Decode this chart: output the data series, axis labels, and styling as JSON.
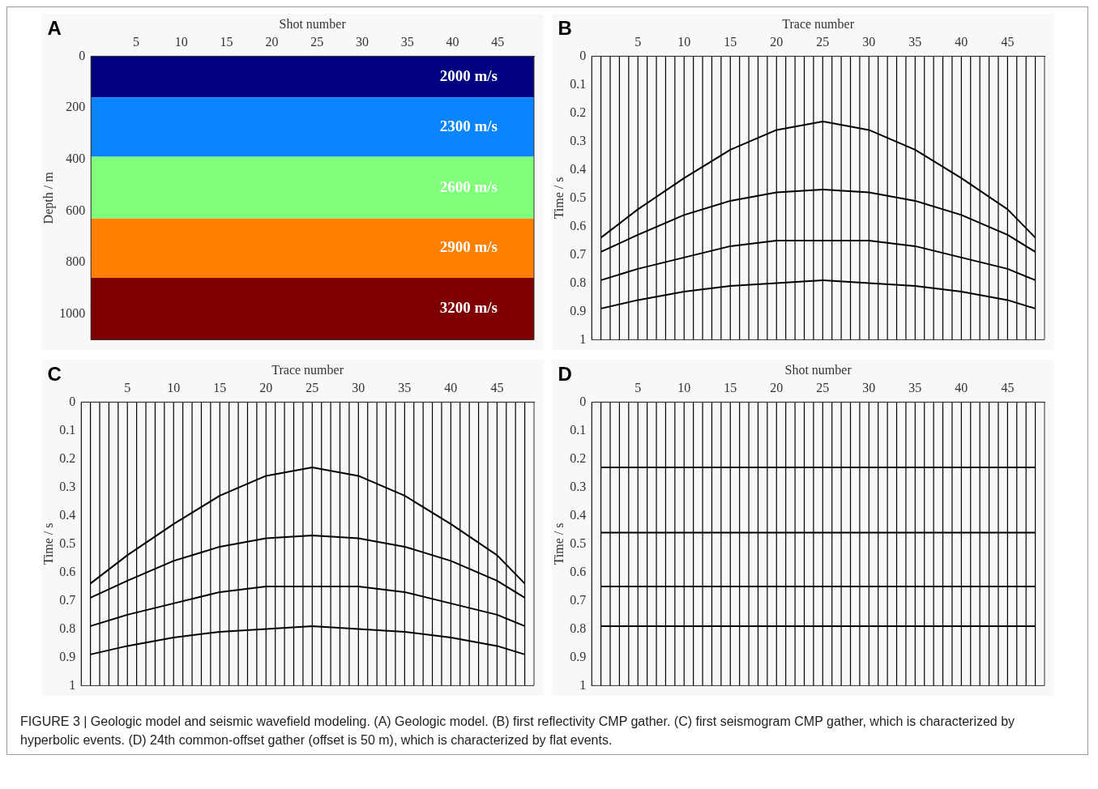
{
  "chart_data": [
    {
      "type": "line",
      "xlabel": "Shot number",
      "ylabel": "Depth / m",
      "xlim": [
        0,
        49
      ],
      "xticks": [
        5,
        10,
        15,
        20,
        25,
        30,
        35,
        40,
        45
      ],
      "ylim": [
        1100,
        0
      ],
      "yticks": [
        0,
        200,
        400,
        600,
        800,
        1000
      ],
      "annotations": [
        "A"
      ],
      "bands": [
        {
          "axis": "y",
          "from": 0,
          "to": 160,
          "label": "2000 m/s",
          "color": "#000080"
        },
        {
          "axis": "y",
          "from": 160,
          "to": 390,
          "label": "2300 m/s",
          "color": "#0a84ff"
        },
        {
          "axis": "y",
          "from": 390,
          "to": 630,
          "label": "2600 m/s",
          "color": "#80ff7a"
        },
        {
          "axis": "y",
          "from": 630,
          "to": 860,
          "label": "2900 m/s",
          "color": "#ff7f00"
        },
        {
          "axis": "y",
          "from": 860,
          "to": 1100,
          "label": "3200 m/s",
          "color": "#7f0000"
        }
      ]
    },
    {
      "type": "line",
      "xlabel": "Trace number",
      "ylabel": "Time / s",
      "xlim": [
        0,
        49
      ],
      "xticks": [
        5,
        10,
        15,
        20,
        25,
        30,
        35,
        40,
        45
      ],
      "ylim": [
        1,
        0
      ],
      "yticks": [
        0,
        0.1,
        0.2,
        0.3,
        0.4,
        0.5,
        0.6,
        0.7,
        0.8,
        0.9,
        1
      ],
      "annotations": [
        "B"
      ],
      "x": [
        1,
        5,
        10,
        15,
        20,
        25,
        30,
        35,
        40,
        45,
        48
      ],
      "series": [
        {
          "color": "#000000",
          "values": [
            0.64,
            0.54,
            0.43,
            0.33,
            0.26,
            0.23,
            0.26,
            0.33,
            0.43,
            0.54,
            0.64
          ]
        },
        {
          "color": "#000000",
          "values": [
            0.69,
            0.63,
            0.56,
            0.51,
            0.48,
            0.47,
            0.48,
            0.51,
            0.56,
            0.63,
            0.69
          ]
        },
        {
          "color": "#000000",
          "values": [
            0.79,
            0.75,
            0.71,
            0.67,
            0.65,
            0.65,
            0.65,
            0.67,
            0.71,
            0.75,
            0.79
          ]
        },
        {
          "color": "#000000",
          "values": [
            0.89,
            0.86,
            0.83,
            0.81,
            0.8,
            0.79,
            0.8,
            0.81,
            0.83,
            0.86,
            0.89
          ]
        }
      ],
      "ref_lines": [
        {
          "axis": "x",
          "value": 1
        },
        {
          "axis": "x",
          "value": 2
        },
        {
          "axis": "x",
          "value": 3
        },
        {
          "axis": "x",
          "value": 4
        },
        {
          "axis": "x",
          "value": 5
        },
        {
          "axis": "x",
          "value": 6
        },
        {
          "axis": "x",
          "value": 7
        },
        {
          "axis": "x",
          "value": 8
        },
        {
          "axis": "x",
          "value": 9
        },
        {
          "axis": "x",
          "value": 10
        },
        {
          "axis": "x",
          "value": 11
        },
        {
          "axis": "x",
          "value": 12
        },
        {
          "axis": "x",
          "value": 13
        },
        {
          "axis": "x",
          "value": 14
        },
        {
          "axis": "x",
          "value": 15
        },
        {
          "axis": "x",
          "value": 16
        },
        {
          "axis": "x",
          "value": 17
        },
        {
          "axis": "x",
          "value": 18
        },
        {
          "axis": "x",
          "value": 19
        },
        {
          "axis": "x",
          "value": 20
        },
        {
          "axis": "x",
          "value": 21
        },
        {
          "axis": "x",
          "value": 22
        },
        {
          "axis": "x",
          "value": 23
        },
        {
          "axis": "x",
          "value": 24
        },
        {
          "axis": "x",
          "value": 25
        },
        {
          "axis": "x",
          "value": 26
        },
        {
          "axis": "x",
          "value": 27
        },
        {
          "axis": "x",
          "value": 28
        },
        {
          "axis": "x",
          "value": 29
        },
        {
          "axis": "x",
          "value": 30
        },
        {
          "axis": "x",
          "value": 31
        },
        {
          "axis": "x",
          "value": 32
        },
        {
          "axis": "x",
          "value": 33
        },
        {
          "axis": "x",
          "value": 34
        },
        {
          "axis": "x",
          "value": 35
        },
        {
          "axis": "x",
          "value": 36
        },
        {
          "axis": "x",
          "value": 37
        },
        {
          "axis": "x",
          "value": 38
        },
        {
          "axis": "x",
          "value": 39
        },
        {
          "axis": "x",
          "value": 40
        },
        {
          "axis": "x",
          "value": 41
        },
        {
          "axis": "x",
          "value": 42
        },
        {
          "axis": "x",
          "value": 43
        },
        {
          "axis": "x",
          "value": 44
        },
        {
          "axis": "x",
          "value": 45
        },
        {
          "axis": "x",
          "value": 46
        },
        {
          "axis": "x",
          "value": 47
        },
        {
          "axis": "x",
          "value": 48
        }
      ]
    },
    {
      "type": "line",
      "xlabel": "Trace number",
      "ylabel": "Time / s",
      "xlim": [
        0,
        49
      ],
      "xticks": [
        5,
        10,
        15,
        20,
        25,
        30,
        35,
        40,
        45
      ],
      "ylim": [
        1,
        0
      ],
      "yticks": [
        0,
        0.1,
        0.2,
        0.3,
        0.4,
        0.5,
        0.6,
        0.7,
        0.8,
        0.9,
        1
      ],
      "annotations": [
        "C"
      ],
      "x": [
        1,
        5,
        10,
        15,
        20,
        25,
        30,
        35,
        40,
        45,
        48
      ],
      "series": [
        {
          "color": "#000000",
          "values": [
            0.64,
            0.54,
            0.43,
            0.33,
            0.26,
            0.23,
            0.26,
            0.33,
            0.43,
            0.54,
            0.64
          ]
        },
        {
          "color": "#000000",
          "values": [
            0.69,
            0.63,
            0.56,
            0.51,
            0.48,
            0.47,
            0.48,
            0.51,
            0.56,
            0.63,
            0.69
          ]
        },
        {
          "color": "#000000",
          "values": [
            0.79,
            0.75,
            0.71,
            0.67,
            0.65,
            0.65,
            0.65,
            0.67,
            0.71,
            0.75,
            0.79
          ]
        },
        {
          "color": "#000000",
          "values": [
            0.89,
            0.86,
            0.83,
            0.81,
            0.8,
            0.79,
            0.8,
            0.81,
            0.83,
            0.86,
            0.89
          ]
        }
      ],
      "ref_lines": [
        {
          "axis": "x",
          "value": 1
        },
        {
          "axis": "x",
          "value": 2
        },
        {
          "axis": "x",
          "value": 3
        },
        {
          "axis": "x",
          "value": 4
        },
        {
          "axis": "x",
          "value": 5
        },
        {
          "axis": "x",
          "value": 6
        },
        {
          "axis": "x",
          "value": 7
        },
        {
          "axis": "x",
          "value": 8
        },
        {
          "axis": "x",
          "value": 9
        },
        {
          "axis": "x",
          "value": 10
        },
        {
          "axis": "x",
          "value": 11
        },
        {
          "axis": "x",
          "value": 12
        },
        {
          "axis": "x",
          "value": 13
        },
        {
          "axis": "x",
          "value": 14
        },
        {
          "axis": "x",
          "value": 15
        },
        {
          "axis": "x",
          "value": 16
        },
        {
          "axis": "x",
          "value": 17
        },
        {
          "axis": "x",
          "value": 18
        },
        {
          "axis": "x",
          "value": 19
        },
        {
          "axis": "x",
          "value": 20
        },
        {
          "axis": "x",
          "value": 21
        },
        {
          "axis": "x",
          "value": 22
        },
        {
          "axis": "x",
          "value": 23
        },
        {
          "axis": "x",
          "value": 24
        },
        {
          "axis": "x",
          "value": 25
        },
        {
          "axis": "x",
          "value": 26
        },
        {
          "axis": "x",
          "value": 27
        },
        {
          "axis": "x",
          "value": 28
        },
        {
          "axis": "x",
          "value": 29
        },
        {
          "axis": "x",
          "value": 30
        },
        {
          "axis": "x",
          "value": 31
        },
        {
          "axis": "x",
          "value": 32
        },
        {
          "axis": "x",
          "value": 33
        },
        {
          "axis": "x",
          "value": 34
        },
        {
          "axis": "x",
          "value": 35
        },
        {
          "axis": "x",
          "value": 36
        },
        {
          "axis": "x",
          "value": 37
        },
        {
          "axis": "x",
          "value": 38
        },
        {
          "axis": "x",
          "value": 39
        },
        {
          "axis": "x",
          "value": 40
        },
        {
          "axis": "x",
          "value": 41
        },
        {
          "axis": "x",
          "value": 42
        },
        {
          "axis": "x",
          "value": 43
        },
        {
          "axis": "x",
          "value": 44
        },
        {
          "axis": "x",
          "value": 45
        },
        {
          "axis": "x",
          "value": 46
        },
        {
          "axis": "x",
          "value": 47
        },
        {
          "axis": "x",
          "value": 48
        }
      ]
    },
    {
      "type": "line",
      "xlabel": "Shot number",
      "ylabel": "Time / s",
      "xlim": [
        0,
        49
      ],
      "xticks": [
        5,
        10,
        15,
        20,
        25,
        30,
        35,
        40,
        45
      ],
      "ylim": [
        1,
        0
      ],
      "yticks": [
        0,
        0.1,
        0.2,
        0.3,
        0.4,
        0.5,
        0.6,
        0.7,
        0.8,
        0.9,
        1
      ],
      "annotations": [
        "D",
        "FIGURE 3 | Geologic model and seismic wavefield modeling. (A) Geologic model. (B) first reflectivity CMP gather. (C) first seismogram CMP gather, which is characterized by hyperbolic events. (D) 24th common-offset gather (offset is 50 m), which is characterized by flat events."
      ],
      "x": [
        1,
        48
      ],
      "series": [
        {
          "color": "#000000",
          "values": [
            0.23,
            0.23
          ]
        },
        {
          "color": "#000000",
          "values": [
            0.46,
            0.46
          ]
        },
        {
          "color": "#000000",
          "values": [
            0.65,
            0.65
          ]
        },
        {
          "color": "#000000",
          "values": [
            0.79,
            0.79
          ]
        }
      ],
      "ref_lines": [
        {
          "axis": "x",
          "value": 1
        },
        {
          "axis": "x",
          "value": 2
        },
        {
          "axis": "x",
          "value": 3
        },
        {
          "axis": "x",
          "value": 4
        },
        {
          "axis": "x",
          "value": 5
        },
        {
          "axis": "x",
          "value": 6
        },
        {
          "axis": "x",
          "value": 7
        },
        {
          "axis": "x",
          "value": 8
        },
        {
          "axis": "x",
          "value": 9
        },
        {
          "axis": "x",
          "value": 10
        },
        {
          "axis": "x",
          "value": 11
        },
        {
          "axis": "x",
          "value": 12
        },
        {
          "axis": "x",
          "value": 13
        },
        {
          "axis": "x",
          "value": 14
        },
        {
          "axis": "x",
          "value": 15
        },
        {
          "axis": "x",
          "value": 16
        },
        {
          "axis": "x",
          "value": 17
        },
        {
          "axis": "x",
          "value": 18
        },
        {
          "axis": "x",
          "value": 19
        },
        {
          "axis": "x",
          "value": 20
        },
        {
          "axis": "x",
          "value": 21
        },
        {
          "axis": "x",
          "value": 22
        },
        {
          "axis": "x",
          "value": 23
        },
        {
          "axis": "x",
          "value": 24
        },
        {
          "axis": "x",
          "value": 25
        },
        {
          "axis": "x",
          "value": 26
        },
        {
          "axis": "x",
          "value": 27
        },
        {
          "axis": "x",
          "value": 28
        },
        {
          "axis": "x",
          "value": 29
        },
        {
          "axis": "x",
          "value": 30
        },
        {
          "axis": "x",
          "value": 31
        },
        {
          "axis": "x",
          "value": 32
        },
        {
          "axis": "x",
          "value": 33
        },
        {
          "axis": "x",
          "value": 34
        },
        {
          "axis": "x",
          "value": 35
        },
        {
          "axis": "x",
          "value": 36
        },
        {
          "axis": "x",
          "value": 37
        },
        {
          "axis": "x",
          "value": 38
        },
        {
          "axis": "x",
          "value": 39
        },
        {
          "axis": "x",
          "value": 40
        },
        {
          "axis": "x",
          "value": 41
        },
        {
          "axis": "x",
          "value": 42
        },
        {
          "axis": "x",
          "value": 43
        },
        {
          "axis": "x",
          "value": 44
        },
        {
          "axis": "x",
          "value": 45
        },
        {
          "axis": "x",
          "value": 46
        },
        {
          "axis": "x",
          "value": 47
        },
        {
          "axis": "x",
          "value": 48
        }
      ]
    }
  ]
}
